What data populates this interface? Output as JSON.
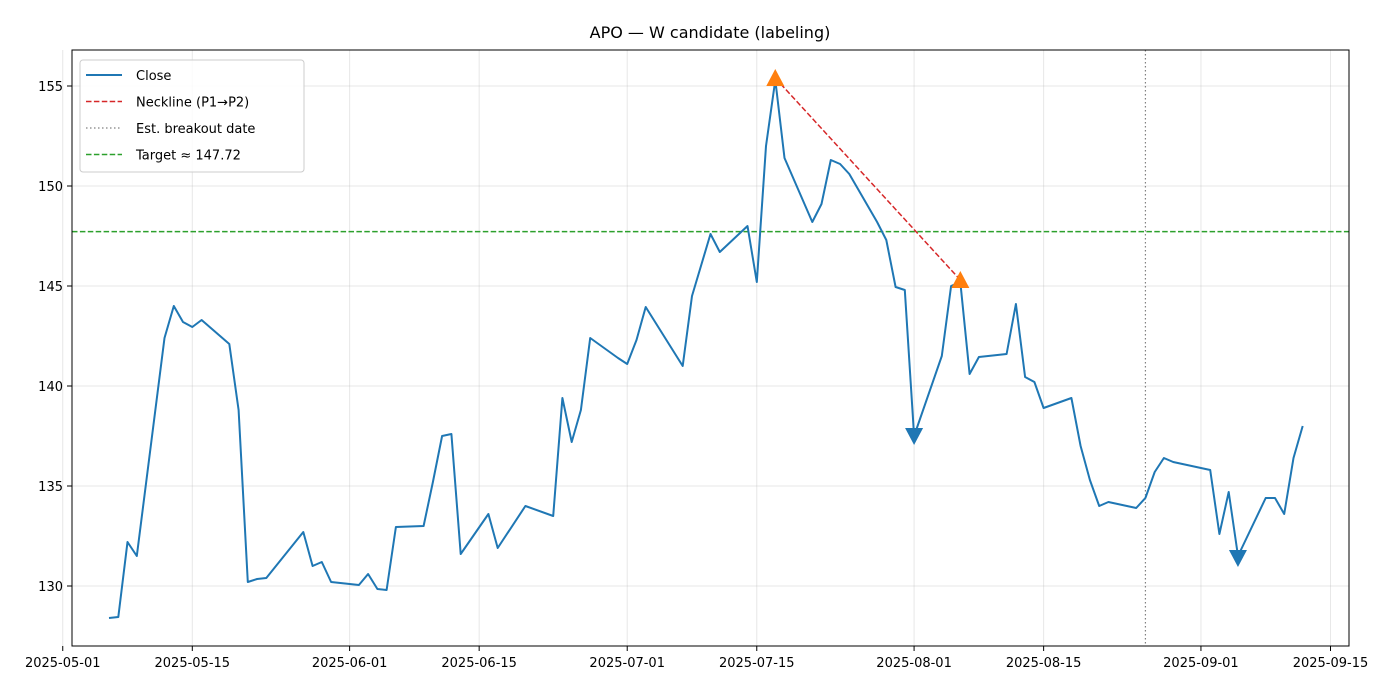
{
  "chart_data": {
    "type": "line",
    "title": "APO — W candidate (labeling)",
    "xlabel": "",
    "ylabel": "",
    "grid": true,
    "legend_position": "top-left",
    "xlim": [
      "2025-05-02",
      "2025-09-17"
    ],
    "ylim": [
      127,
      156.8
    ],
    "x_ticks": [
      "2025-05-01",
      "2025-05-15",
      "2025-06-01",
      "2025-06-15",
      "2025-07-01",
      "2025-07-15",
      "2025-08-01",
      "2025-08-15",
      "2025-09-01",
      "2025-09-15"
    ],
    "y_ticks": [
      130,
      135,
      140,
      145,
      150,
      155
    ],
    "colors": {
      "close": "#1f77b4",
      "neckline": "#d62728",
      "breakout": "#808080",
      "target": "#2ca02c",
      "peak_marker": "#ff7f0e",
      "trough_marker": "#1f77b4"
    },
    "legend": [
      {
        "label": "Close",
        "key": "close",
        "style": "solid"
      },
      {
        "label": "Neckline (P1→P2)",
        "key": "neckline",
        "style": "dashed"
      },
      {
        "label": "Est. breakout date",
        "key": "breakout",
        "style": "dotted"
      },
      {
        "label": "Target ≈ 147.72",
        "key": "target",
        "style": "dashed"
      }
    ],
    "series": [
      {
        "name": "Close",
        "points": [
          [
            "2025-05-06",
            128.4
          ],
          [
            "2025-05-07",
            128.45
          ],
          [
            "2025-05-08",
            132.2
          ],
          [
            "2025-05-09",
            131.5
          ],
          [
            "2025-05-12",
            142.4
          ],
          [
            "2025-05-13",
            144.0
          ],
          [
            "2025-05-14",
            143.2
          ],
          [
            "2025-05-15",
            142.95
          ],
          [
            "2025-05-16",
            143.3
          ],
          [
            "2025-05-19",
            142.1
          ],
          [
            "2025-05-20",
            138.8
          ],
          [
            "2025-05-21",
            130.2
          ],
          [
            "2025-05-22",
            130.35
          ],
          [
            "2025-05-23",
            130.4
          ],
          [
            "2025-05-27",
            132.7
          ],
          [
            "2025-05-28",
            131.0
          ],
          [
            "2025-05-29",
            131.2
          ],
          [
            "2025-05-30",
            130.2
          ],
          [
            "2025-06-02",
            130.05
          ],
          [
            "2025-06-03",
            130.6
          ],
          [
            "2025-06-04",
            129.85
          ],
          [
            "2025-06-05",
            129.8
          ],
          [
            "2025-06-06",
            132.95
          ],
          [
            "2025-06-09",
            133.0
          ],
          [
            "2025-06-10",
            135.2
          ],
          [
            "2025-06-11",
            137.5
          ],
          [
            "2025-06-12",
            137.6
          ],
          [
            "2025-06-13",
            131.6
          ],
          [
            "2025-06-16",
            133.6
          ],
          [
            "2025-06-17",
            131.9
          ],
          [
            "2025-06-20",
            134.0
          ],
          [
            "2025-06-23",
            133.5
          ],
          [
            "2025-06-24",
            139.4
          ],
          [
            "2025-06-25",
            137.2
          ],
          [
            "2025-06-26",
            138.8
          ],
          [
            "2025-06-27",
            142.4
          ],
          [
            "2025-06-30",
            141.4
          ],
          [
            "2025-07-01",
            141.1
          ],
          [
            "2025-07-02",
            142.3
          ],
          [
            "2025-07-03",
            143.95
          ],
          [
            "2025-07-07",
            141.0
          ],
          [
            "2025-07-08",
            144.5
          ],
          [
            "2025-07-10",
            147.6
          ],
          [
            "2025-07-11",
            146.7
          ],
          [
            "2025-07-14",
            148.0
          ],
          [
            "2025-07-15",
            145.2
          ],
          [
            "2025-07-16",
            152.0
          ],
          [
            "2025-07-17",
            155.3
          ],
          [
            "2025-07-18",
            151.4
          ],
          [
            "2025-07-21",
            148.2
          ],
          [
            "2025-07-22",
            149.1
          ],
          [
            "2025-07-23",
            151.3
          ],
          [
            "2025-07-24",
            151.1
          ],
          [
            "2025-07-25",
            150.6
          ],
          [
            "2025-07-28",
            148.2
          ],
          [
            "2025-07-29",
            147.3
          ],
          [
            "2025-07-30",
            144.95
          ],
          [
            "2025-07-31",
            144.8
          ],
          [
            "2025-08-01",
            137.5
          ],
          [
            "2025-08-04",
            141.5
          ],
          [
            "2025-08-05",
            145.0
          ],
          [
            "2025-08-06",
            145.2
          ],
          [
            "2025-08-07",
            140.6
          ],
          [
            "2025-08-08",
            141.45
          ],
          [
            "2025-08-11",
            141.6
          ],
          [
            "2025-08-12",
            144.1
          ],
          [
            "2025-08-13",
            140.45
          ],
          [
            "2025-08-14",
            140.2
          ],
          [
            "2025-08-15",
            138.9
          ],
          [
            "2025-08-18",
            139.4
          ],
          [
            "2025-08-19",
            137.0
          ],
          [
            "2025-08-20",
            135.3
          ],
          [
            "2025-08-21",
            134.0
          ],
          [
            "2025-08-22",
            134.2
          ],
          [
            "2025-08-25",
            133.9
          ],
          [
            "2025-08-26",
            134.4
          ],
          [
            "2025-08-27",
            135.7
          ],
          [
            "2025-08-28",
            136.4
          ],
          [
            "2025-08-29",
            136.2
          ],
          [
            "2025-09-02",
            135.8
          ],
          [
            "2025-09-03",
            132.6
          ],
          [
            "2025-09-04",
            134.7
          ],
          [
            "2025-09-05",
            131.5
          ],
          [
            "2025-09-08",
            134.4
          ],
          [
            "2025-09-09",
            134.4
          ],
          [
            "2025-09-10",
            133.6
          ],
          [
            "2025-09-11",
            136.4
          ],
          [
            "2025-09-12",
            138.0
          ]
        ]
      }
    ],
    "neckline": [
      [
        "2025-07-17",
        155.4
      ],
      [
        "2025-08-06",
        145.3
      ]
    ],
    "breakout_date": "2025-08-26",
    "target": 147.72,
    "peaks": [
      [
        "2025-07-17",
        155.4
      ],
      [
        "2025-08-06",
        145.3
      ]
    ],
    "troughs": [
      [
        "2025-08-01",
        137.5
      ],
      [
        "2025-09-05",
        131.4
      ]
    ]
  }
}
